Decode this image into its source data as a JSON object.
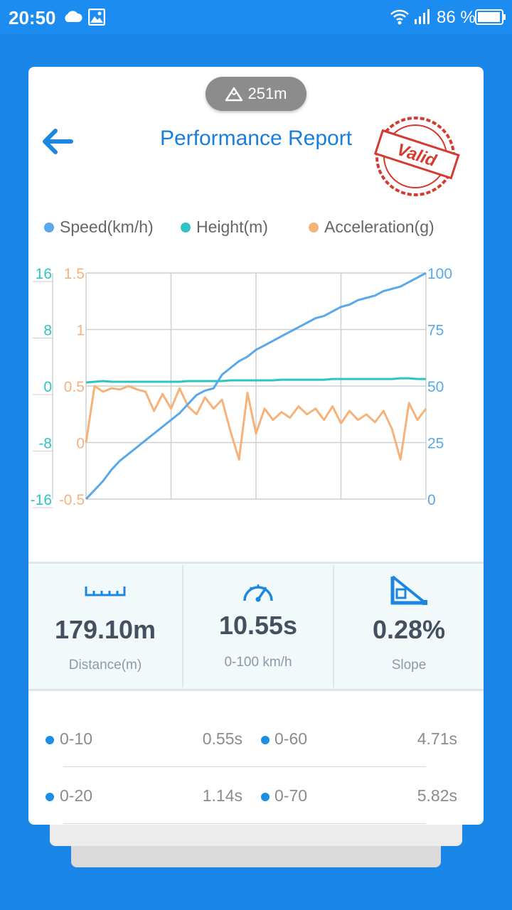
{
  "status_bar": {
    "time": "20:50",
    "battery_pct": "86 %"
  },
  "altitude": "251m",
  "header": {
    "title": "Performance Report",
    "stamp_text": "Valid"
  },
  "legend": [
    {
      "label": "Speed(km/h)",
      "color": "#5ba8e8"
    },
    {
      "label": "Height(m)",
      "color": "#2fc4c4"
    },
    {
      "label": "Acceleration(g)",
      "color": "#f7b27a"
    }
  ],
  "chart_data": {
    "type": "line",
    "x": [
      0,
      1,
      2,
      3,
      4,
      5,
      6,
      7,
      8,
      9,
      10,
      11,
      12,
      13,
      14,
      15,
      16,
      17,
      18,
      19,
      20,
      21,
      22,
      23,
      24,
      25,
      26,
      27,
      28,
      29,
      30,
      31,
      32,
      33,
      34,
      35,
      36,
      37,
      38,
      39,
      40
    ],
    "series": [
      {
        "name": "Speed(km/h)",
        "axis": "right",
        "values": [
          0,
          4,
          8,
          13,
          17,
          20,
          23,
          26,
          29,
          32,
          35,
          38,
          42,
          46,
          48,
          49,
          55,
          58,
          61,
          63,
          66,
          68,
          70,
          72,
          74,
          76,
          78,
          80,
          81,
          83,
          85,
          86,
          88,
          89,
          90,
          92,
          93,
          94,
          96,
          98,
          100
        ]
      },
      {
        "name": "Height(m)",
        "axis": "left-outer",
        "values": [
          0.5,
          0.6,
          0.7,
          0.6,
          0.6,
          0.6,
          0.6,
          0.6,
          0.6,
          0.6,
          0.6,
          0.6,
          0.7,
          0.7,
          0.7,
          0.7,
          0.7,
          0.8,
          0.8,
          0.8,
          0.8,
          0.8,
          0.8,
          0.9,
          0.9,
          0.9,
          0.9,
          0.9,
          0.9,
          1.0,
          1.0,
          1.0,
          1.0,
          1.0,
          1.0,
          1.0,
          1.0,
          1.1,
          1.1,
          1.0,
          1.0
        ]
      },
      {
        "name": "Acceleration(g)",
        "axis": "left-inner",
        "values": [
          0.0,
          0.5,
          0.45,
          0.48,
          0.47,
          0.5,
          0.47,
          0.45,
          0.28,
          0.43,
          0.3,
          0.48,
          0.32,
          0.25,
          0.4,
          0.3,
          0.38,
          0.1,
          -0.15,
          0.44,
          0.08,
          0.3,
          0.2,
          0.27,
          0.22,
          0.32,
          0.25,
          0.3,
          0.2,
          0.32,
          0.17,
          0.28,
          0.2,
          0.25,
          0.18,
          0.28,
          0.12,
          -0.15,
          0.35,
          0.2,
          0.3
        ]
      }
    ],
    "axes": {
      "left_outer": {
        "ticks": [
          "16",
          "8",
          "0",
          "-8",
          "-16"
        ],
        "range": [
          -16,
          16
        ],
        "color": "#2fc4c4"
      },
      "left_inner": {
        "ticks": [
          "1.5",
          "1",
          "0.5",
          "0",
          "-0.5"
        ],
        "range": [
          -0.5,
          1.5
        ],
        "color": "#f7b27a"
      },
      "right": {
        "ticks": [
          "100",
          "75",
          "50",
          "25",
          "0"
        ],
        "range": [
          0,
          100
        ],
        "color": "#5ba8e8"
      }
    },
    "grid": true
  },
  "stats": [
    {
      "value": "179.10m",
      "label": "Distance(m)",
      "icon": "ruler-icon"
    },
    {
      "value": "10.55s",
      "label": "0-100 km/h",
      "icon": "speedometer-icon"
    },
    {
      "value": "0.28%",
      "label": "Slope",
      "icon": "slope-icon"
    }
  ],
  "splits": [
    {
      "left_range": "0-10",
      "left_time": "0.55s",
      "right_range": "0-60",
      "right_time": "4.71s"
    },
    {
      "left_range": "0-20",
      "left_time": "1.14s",
      "right_range": "0-70",
      "right_time": "5.82s"
    }
  ]
}
